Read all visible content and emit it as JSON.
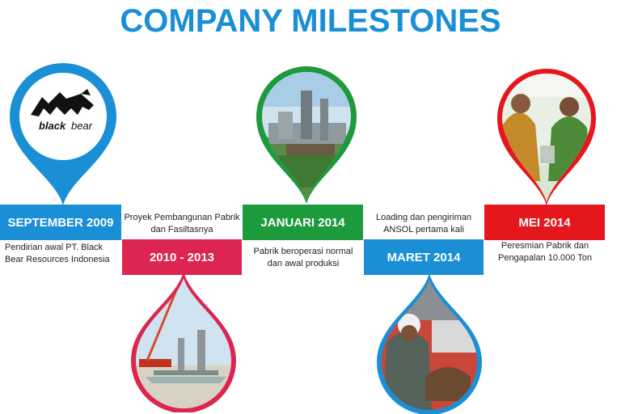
{
  "title": "COMPANY MILESTONES",
  "colors": {
    "blue": "#1a8fd6",
    "crimson": "#dc2550",
    "green": "#1d9a3c",
    "red": "#e5161c"
  },
  "logo": {
    "text_a": "black",
    "text_b": "bear"
  },
  "milestones": [
    {
      "date": "SEPTEMBER 2009",
      "desc": "Pendirian awal PT. Black Bear Resources Indonesia",
      "color": "#1a8fd6",
      "media": "logo"
    },
    {
      "date": "2010 - 2013",
      "desc": "Proyek Pembangunan Pabrik dan Fasiltasnya",
      "color": "#dc2550",
      "media": "construction-photo"
    },
    {
      "date": "JANUARI 2014",
      "desc": "Pabrik beroperasi normal dan awal produksi",
      "color": "#1d9a3c",
      "media": "factory-photo"
    },
    {
      "date": "MARET 2014",
      "desc": "Loading dan pengiriman ANSOL pertama kali",
      "color": "#1a8fd6",
      "media": "worker-photo"
    },
    {
      "date": "MEI 2014",
      "desc": "Peresmian Pabrik dan Pengapalan 10.000 Ton",
      "color": "#e5161c",
      "media": "ceremony-photo"
    }
  ]
}
